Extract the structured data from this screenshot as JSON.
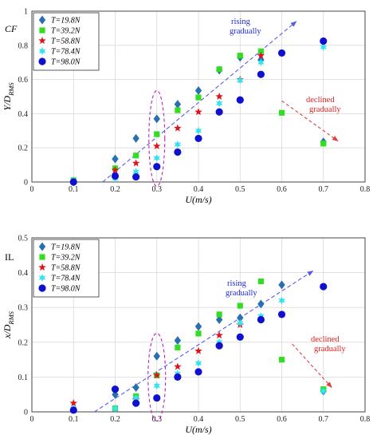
{
  "colors": {
    "s1": "#2a6fb0",
    "s2": "#33dd22",
    "s3": "#e0121b",
    "s4": "#33e4f0",
    "s5": "#1010d0",
    "rising_arrow": "#5a5af0",
    "declined_arrow": "#e04040",
    "ellipse": "#c020c0",
    "grid": "#d9d9d9"
  },
  "chart_data": [
    {
      "type": "scatter",
      "panel_label": "CF",
      "ylabel_main": "Y/D",
      "ylabel_sub": "RMS",
      "xlabel": "U(m/s)",
      "xlim": [
        0,
        0.8
      ],
      "ylim": [
        0,
        1
      ],
      "xticks": [
        "0",
        "0.1",
        "0.2",
        "0.3",
        "0.4",
        "0.5",
        "0.6",
        "0.7",
        "0.8"
      ],
      "yticks": [
        "0",
        "0.2",
        "0.4",
        "0.6",
        "0.8",
        "1"
      ],
      "grid": true,
      "legend_position": "top-left",
      "annotations": {
        "rising": [
          "rising",
          "gradually"
        ],
        "declined": [
          "declined",
          "gradually"
        ]
      },
      "series": [
        {
          "name": "T=19.8N",
          "marker": "diamond",
          "color_key": "s1",
          "x": [
            0.1,
            0.2,
            0.25,
            0.3,
            0.35,
            0.4,
            0.45,
            0.5,
            0.55,
            0.7
          ],
          "y": [
            0.0,
            0.135,
            0.255,
            0.37,
            0.455,
            0.535,
            0.655,
            0.73,
            0.715,
            0.235
          ]
        },
        {
          "name": "T=39.2N",
          "marker": "square",
          "color_key": "s2",
          "x": [
            0.1,
            0.2,
            0.25,
            0.3,
            0.35,
            0.4,
            0.45,
            0.5,
            0.55,
            0.6,
            0.7
          ],
          "y": [
            0.01,
            0.08,
            0.155,
            0.28,
            0.42,
            0.495,
            0.66,
            0.74,
            0.765,
            0.405,
            0.225
          ]
        },
        {
          "name": "T=58.8N",
          "marker": "star",
          "color_key": "s3",
          "x": [
            0.2,
            0.25,
            0.3,
            0.35,
            0.4,
            0.45,
            0.5,
            0.55
          ],
          "y": [
            0.07,
            0.11,
            0.21,
            0.315,
            0.41,
            0.5,
            0.6,
            0.74
          ]
        },
        {
          "name": "T=78.4N",
          "marker": "asterisk",
          "color_key": "s4",
          "x": [
            0.1,
            0.2,
            0.25,
            0.3,
            0.35,
            0.4,
            0.45,
            0.5,
            0.55,
            0.7
          ],
          "y": [
            0.01,
            0.02,
            0.06,
            0.14,
            0.22,
            0.3,
            0.46,
            0.595,
            0.7,
            0.79
          ]
        },
        {
          "name": "T=98.0N",
          "marker": "circle",
          "color_key": "s5",
          "x": [
            0.1,
            0.2,
            0.25,
            0.3,
            0.35,
            0.4,
            0.45,
            0.5,
            0.55,
            0.6,
            0.7
          ],
          "y": [
            0.0,
            0.035,
            0.03,
            0.09,
            0.175,
            0.255,
            0.41,
            0.48,
            0.63,
            0.755,
            0.825
          ]
        }
      ]
    },
    {
      "type": "scatter",
      "panel_label": "IL",
      "ylabel_main": "x/D",
      "ylabel_sub": "RMS",
      "xlabel": "U(m/s)",
      "xlim": [
        0,
        0.8
      ],
      "ylim": [
        0,
        0.5
      ],
      "xticks": [
        "0",
        "0.1",
        "0.2",
        "0.3",
        "0.4",
        "0.5",
        "0.6",
        "0.7",
        "0.8"
      ],
      "yticks": [
        "0",
        "0.1",
        "0.2",
        "0.3",
        "0.4",
        "0.5"
      ],
      "grid": true,
      "legend_position": "top-left",
      "annotations": {
        "rising": [
          "rising",
          "gradually"
        ],
        "declined": [
          "declined",
          "gradually"
        ]
      },
      "series": [
        {
          "name": "T=19.8N",
          "marker": "diamond",
          "color_key": "s1",
          "x": [
            0.2,
            0.25,
            0.3,
            0.35,
            0.4,
            0.45,
            0.5,
            0.55,
            0.6,
            0.7
          ],
          "y": [
            0.05,
            0.07,
            0.16,
            0.205,
            0.245,
            0.265,
            0.27,
            0.31,
            0.365,
            0.06
          ]
        },
        {
          "name": "T=39.2N",
          "marker": "square",
          "color_key": "s2",
          "x": [
            0.2,
            0.25,
            0.3,
            0.35,
            0.4,
            0.45,
            0.5,
            0.55,
            0.6,
            0.7
          ],
          "y": [
            0.01,
            0.045,
            0.105,
            0.185,
            0.225,
            0.28,
            0.305,
            0.375,
            0.15,
            0.065
          ]
        },
        {
          "name": "T=58.8N",
          "marker": "star",
          "color_key": "s3",
          "x": [
            0.1,
            0.25,
            0.3,
            0.35,
            0.4,
            0.45,
            0.5
          ],
          "y": [
            0.025,
            0.035,
            0.105,
            0.13,
            0.175,
            0.22,
            0.25
          ]
        },
        {
          "name": "T=78.4N",
          "marker": "asterisk",
          "color_key": "s4",
          "x": [
            0.1,
            0.2,
            0.25,
            0.3,
            0.35,
            0.4,
            0.45,
            0.5,
            0.55,
            0.6,
            0.7
          ],
          "y": [
            0.01,
            0.01,
            0.04,
            0.075,
            0.11,
            0.14,
            0.2,
            0.255,
            0.275,
            0.32,
            0.06
          ]
        },
        {
          "name": "T=98.0N",
          "marker": "circle",
          "color_key": "s5",
          "x": [
            0.1,
            0.2,
            0.25,
            0.3,
            0.35,
            0.4,
            0.45,
            0.5,
            0.55,
            0.6,
            0.7
          ],
          "y": [
            0.005,
            0.065,
            0.025,
            0.04,
            0.1,
            0.115,
            0.19,
            0.215,
            0.265,
            0.28,
            0.36
          ]
        }
      ]
    }
  ]
}
